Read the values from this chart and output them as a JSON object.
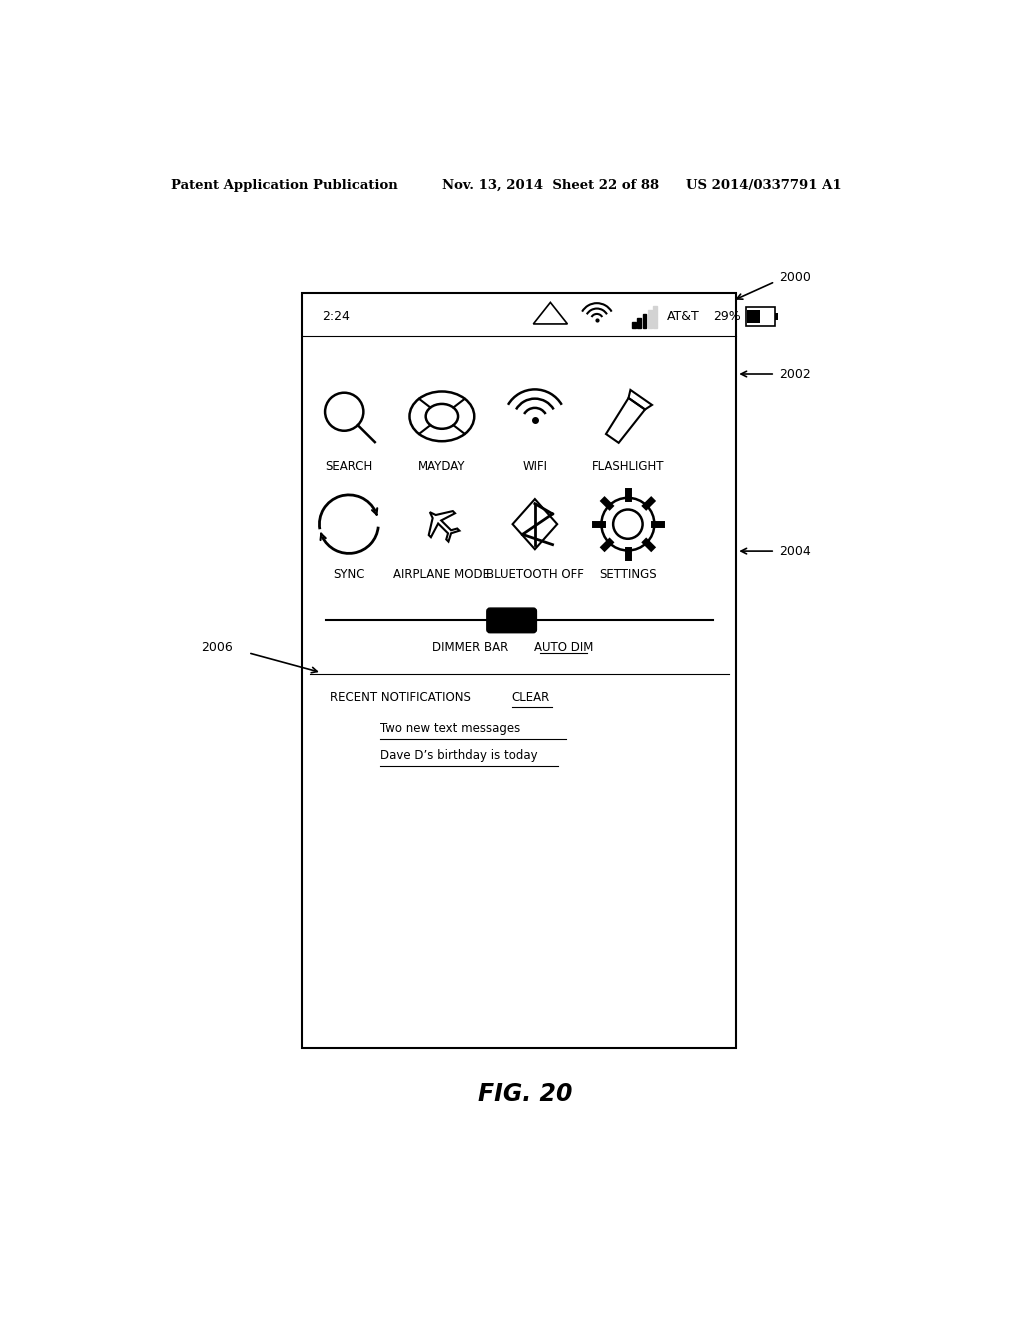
{
  "bg_color": "#ffffff",
  "figure_label": "FIG. 20",
  "row1_icons": [
    "SEARCH",
    "MAYDAY",
    "WIFI",
    "FLASHLIGHT"
  ],
  "row2_icons": [
    "SYNC",
    "AIRPLANE MODE",
    "BLUETOOTH OFF",
    "SETTINGS"
  ],
  "dimmer_label": "DIMMER BAR",
  "auto_dim_label": "AUTO DIM",
  "recent_notifications": "RECENT NOTIFICATIONS",
  "clear_label": "CLEAR",
  "notification1": "Two new text messages",
  "notification2": "Dave D’s birthday is today",
  "label_2000": "2000",
  "label_2002": "2002",
  "label_2004": "2004",
  "label_2006": "2006"
}
